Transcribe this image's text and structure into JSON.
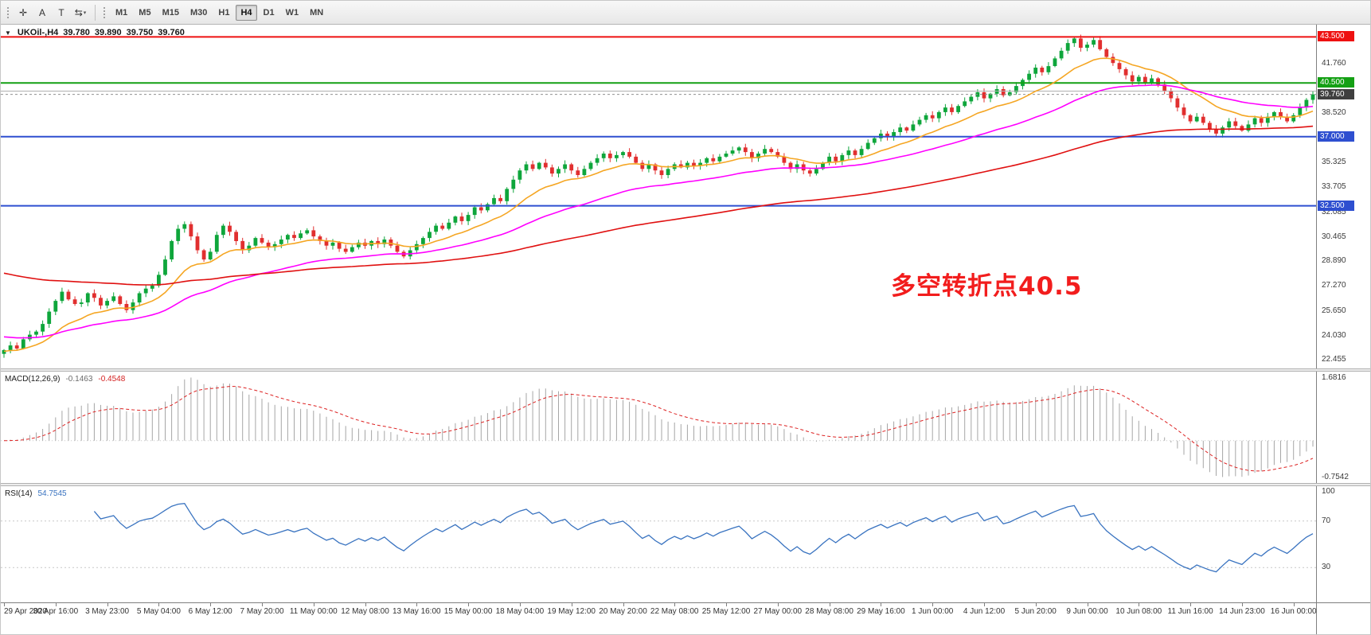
{
  "toolbar": {
    "tools": [
      {
        "name": "crosshair-tool",
        "glyph": "✛"
      },
      {
        "name": "text-label-tool",
        "glyph": "A"
      },
      {
        "name": "text-box-tool",
        "glyph": "T"
      },
      {
        "name": "indicators-dropdown",
        "glyph": "⇆",
        "caret": "▾"
      }
    ],
    "timeframes": [
      "M1",
      "M5",
      "M15",
      "M30",
      "H1",
      "H4",
      "D1",
      "W1",
      "MN"
    ],
    "active_timeframe": "H4"
  },
  "chart": {
    "collapse_icon": "▼",
    "symbol_period": "UKOil-,H4",
    "ohlc": {
      "open": "39.780",
      "high": "39.890",
      "low": "39.750",
      "close": "39.760"
    }
  },
  "annotation": {
    "text": "多空转折点40.5",
    "color": "#f21d1d"
  },
  "macd": {
    "label": "MACD(12,26,9)",
    "value": "-0.1463",
    "signal_value": "-0.4548",
    "axis_max": "1.6816",
    "axis_min": "-0.7542",
    "fast": 12,
    "slow": 26,
    "signal": 9,
    "histogram_color": "#a6a6a6",
    "signal_color": "#dd2222"
  },
  "rsi": {
    "label": "RSI(14)",
    "value": "54.7545",
    "period": 14,
    "levels": [
      70,
      30
    ],
    "axis_labels": [
      {
        "label": "100",
        "value": 100
      },
      {
        "label": "70",
        "value": 70
      },
      {
        "label": "30",
        "value": 30
      }
    ],
    "line_color": "#3973c0"
  },
  "chart_data": {
    "type": "candlestick",
    "title": "UKOil-,H4",
    "symbol": "UKOil-",
    "timeframe": "H4",
    "price_range": [
      21.9,
      44.3
    ],
    "colors": {
      "up": "#0ea63b",
      "down": "#e12f2f"
    },
    "y_ticks": [
      {
        "label": "41.760",
        "price": 41.76
      },
      {
        "label": "38.520",
        "price": 38.52
      },
      {
        "label": "35.325",
        "price": 35.325
      },
      {
        "label": "33.705",
        "price": 33.705
      },
      {
        "label": "32.085",
        "price": 32.085
      },
      {
        "label": "30.465",
        "price": 30.465
      },
      {
        "label": "28.890",
        "price": 28.89
      },
      {
        "label": "27.270",
        "price": 27.27
      },
      {
        "label": "25.650",
        "price": 25.65
      },
      {
        "label": "24.030",
        "price": 24.03
      },
      {
        "label": "22.455",
        "price": 22.455
      }
    ],
    "levels": [
      {
        "price": 43.5,
        "label": "43.500",
        "color": "#ee1111",
        "width": 2
      },
      {
        "price": 40.5,
        "label": "40.500",
        "color": "#14a014",
        "width": 2
      },
      {
        "price": 39.97,
        "label": "",
        "color": "#b0b0b0",
        "width": 1
      },
      {
        "price": 39.76,
        "label": "39.760",
        "color": "#909090",
        "width": 1,
        "dotted": true,
        "chip": "#3f3f3f"
      },
      {
        "price": 37.0,
        "label": "37.000",
        "color": "#2e4fd0",
        "width": 2
      },
      {
        "price": 32.5,
        "label": "32.500",
        "color": "#2e4fd0",
        "width": 2
      }
    ],
    "moving_averages": [
      {
        "name": "ma-fast-orange",
        "color": "#f5a623",
        "period": 14,
        "seed": 23.0
      },
      {
        "name": "ma-medium-magenta",
        "color": "#ff00ff",
        "period": 40,
        "seed": 24.0
      },
      {
        "name": "ma-slow-red",
        "color": "#e01010",
        "period": 110,
        "seed": 28.2
      }
    ],
    "bars_per_label": 8,
    "x_labels": [
      "29 Apr 2020",
      "30 Apr 16:00",
      "3 May 23:00",
      "5 May 04:00",
      "6 May 12:00",
      "7 May 20:00",
      "11 May 00:00",
      "12 May 08:00",
      "13 May 16:00",
      "15 May 00:00",
      "18 May 04:00",
      "19 May 12:00",
      "20 May 20:00",
      "22 May 08:00",
      "25 May 12:00",
      "27 May 00:00",
      "28 May 08:00",
      "29 May 16:00",
      "1 Jun 00:00",
      "4 Jun 12:00",
      "5 Jun 20:00",
      "9 Jun 00:00",
      "10 Jun 08:00",
      "11 Jun 16:00",
      "14 Jun 23:00",
      "16 Jun 00:00"
    ],
    "closes": [
      23.1,
      23.4,
      23.2,
      23.8,
      24.1,
      24.3,
      24.8,
      25.6,
      26.3,
      26.9,
      26.4,
      26.1,
      26.2,
      26.8,
      26.5,
      26.0,
      26.3,
      26.6,
      26.1,
      25.7,
      26.2,
      26.8,
      27.1,
      27.3,
      28.0,
      29.0,
      30.2,
      31.0,
      31.3,
      30.5,
      29.6,
      29.0,
      29.5,
      30.6,
      31.2,
      30.8,
      30.2,
      29.6,
      29.9,
      30.4,
      30.1,
      29.8,
      30.0,
      30.3,
      30.6,
      30.4,
      30.7,
      30.9,
      30.5,
      30.2,
      29.9,
      30.1,
      29.7,
      29.5,
      29.8,
      30.1,
      29.9,
      30.2,
      30.0,
      30.3,
      29.9,
      29.5,
      29.2,
      29.6,
      30.0,
      30.4,
      30.8,
      31.2,
      31.0,
      31.4,
      31.8,
      31.5,
      31.9,
      32.4,
      32.2,
      32.6,
      33.0,
      32.8,
      33.6,
      34.2,
      34.8,
      35.2,
      34.9,
      35.3,
      35.0,
      34.6,
      34.9,
      35.2,
      34.8,
      34.5,
      34.9,
      35.3,
      35.6,
      35.9,
      35.6,
      35.8,
      36.0,
      35.7,
      35.3,
      34.9,
      35.2,
      34.8,
      34.5,
      34.9,
      35.2,
      35.0,
      35.3,
      35.1,
      35.3,
      35.6,
      35.4,
      35.7,
      35.9,
      36.1,
      36.3,
      36.0,
      35.6,
      35.9,
      36.2,
      36.0,
      35.7,
      35.3,
      34.9,
      35.2,
      34.8,
      34.6,
      34.9,
      35.3,
      35.7,
      35.4,
      35.8,
      36.1,
      35.8,
      36.2,
      36.6,
      36.9,
      37.2,
      37.0,
      37.3,
      37.6,
      37.4,
      37.8,
      38.1,
      38.4,
      38.2,
      38.6,
      38.9,
      38.6,
      39.0,
      39.3,
      39.6,
      39.9,
      39.5,
      39.8,
      40.1,
      39.7,
      39.9,
      40.3,
      40.7,
      41.1,
      41.5,
      41.2,
      41.6,
      42.1,
      42.6,
      43.1,
      43.4,
      42.8,
      43.0,
      43.3,
      42.7,
      42.2,
      41.8,
      41.4,
      41.0,
      40.6,
      40.9,
      40.5,
      40.8,
      40.4,
      40.0,
      39.5,
      38.9,
      38.4,
      38.0,
      38.3,
      37.9,
      37.5,
      37.2,
      37.6,
      38.0,
      37.7,
      37.4,
      37.8,
      38.2,
      37.9,
      38.3,
      38.6,
      38.3,
      38.0,
      38.4,
      38.9,
      39.4,
      39.76
    ]
  }
}
